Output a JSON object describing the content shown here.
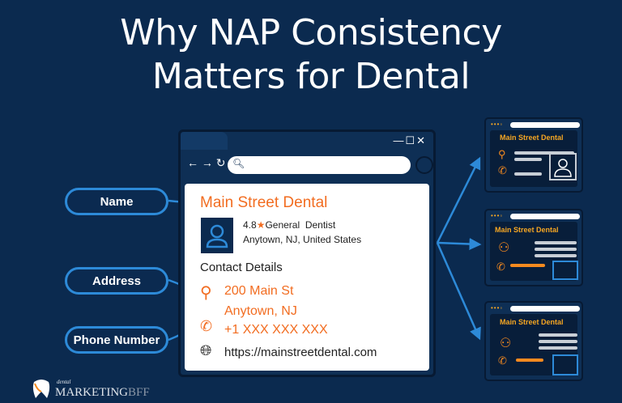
{
  "title_line1": "Why NAP Consistency",
  "title_line2": "Matters for Dental",
  "labels": {
    "name": "Name",
    "address": "Address",
    "phone": "Phone Number"
  },
  "browser": {
    "controls": "—☐✕",
    "nav": "← → ↻",
    "business_name": "Main Street Dental",
    "rating": "4.8",
    "category": "General  Dentist",
    "location": "Anytown, NJ, United States",
    "contact_heading": "Contact Details",
    "address_line1": "200 Main St",
    "address_line2": "Anytown, NJ",
    "phone": "+1 XXX XXX XXX",
    "website": "https://mainstreetdental.com"
  },
  "listings": [
    {
      "name": "Main Street Dental"
    },
    {
      "name": "Main Street Dental"
    },
    {
      "name": "Main Street Dental"
    }
  ],
  "logo": {
    "small": "dental",
    "main": "MARKETING",
    "suffix": "BFF"
  },
  "colors": {
    "background": "#0b2a4f",
    "accent": "#f26d21",
    "arrow": "#2d8ad8"
  }
}
